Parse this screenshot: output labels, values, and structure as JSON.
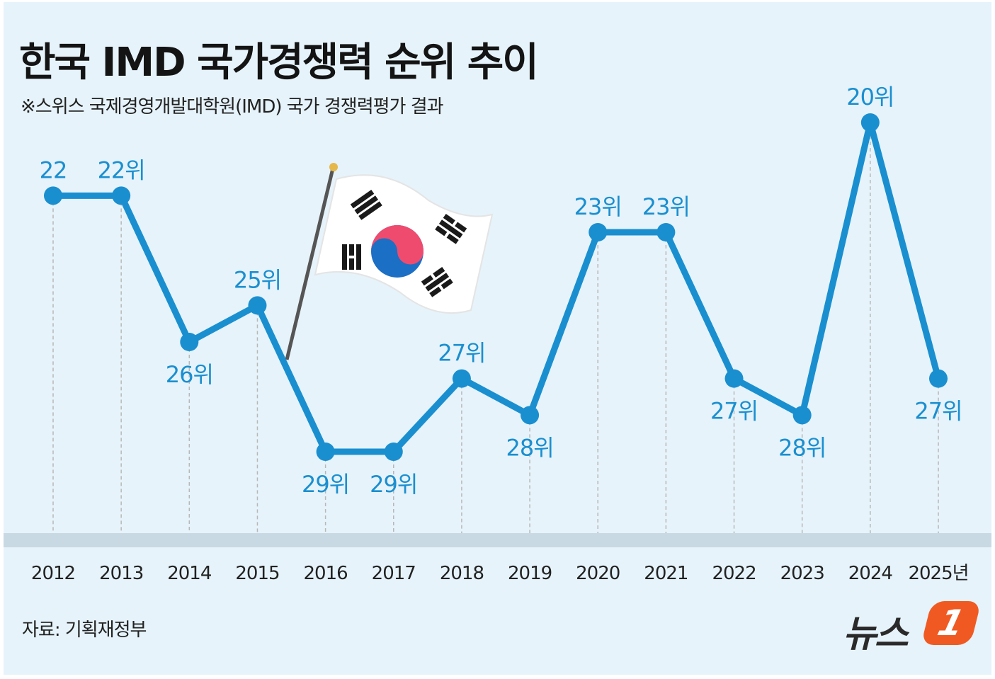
{
  "title": "한국 IMD 국가경쟁력 순위 추이",
  "subtitle": "※스위스 국제경영개발대학원(IMD) 국가 경쟁력평가 결과",
  "source": "자료: 기획재정부",
  "logo": {
    "text": "뉴스",
    "badge": "1"
  },
  "colors": {
    "line": "#1a8fd0",
    "label": "#1a8fd0",
    "background": "#e6f3fa",
    "baseline": "#c9d9e3",
    "logo_badge": "#f05a22"
  },
  "icons": {
    "flag": "korean-flag-icon"
  },
  "chart_data": {
    "type": "line",
    "title": "한국 IMD 국가경쟁력 순위 추이",
    "categories": [
      "2012",
      "2013",
      "2014",
      "2015",
      "2016",
      "2017",
      "2018",
      "2019",
      "2020",
      "2021",
      "2022",
      "2023",
      "2024",
      "2025년"
    ],
    "values": [
      22,
      22,
      26,
      25,
      29,
      29,
      27,
      28,
      23,
      23,
      27,
      28,
      20,
      27
    ],
    "labels": [
      "22",
      "22위",
      "26위",
      "25위",
      "29위",
      "29위",
      "27위",
      "28위",
      "23위",
      "23위",
      "27위",
      "28위",
      "20위",
      "27위"
    ],
    "inverted_axis": true,
    "grid": false
  }
}
